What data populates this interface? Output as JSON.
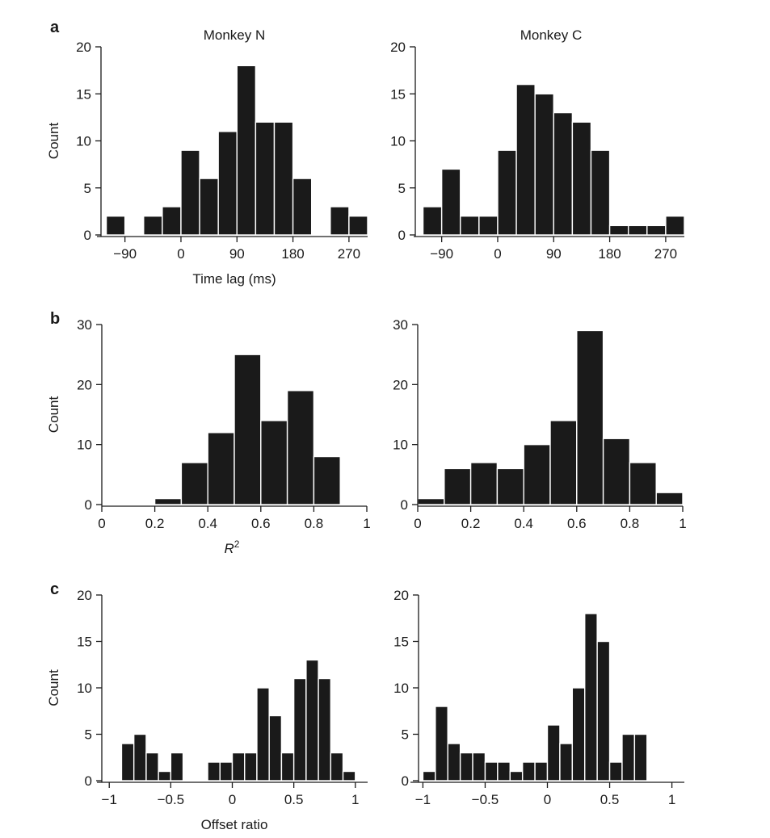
{
  "figure": {
    "column_titles": [
      "Monkey N",
      "Monkey C"
    ],
    "panel_letters": [
      "a",
      "b",
      "c"
    ]
  },
  "chart_data": [
    {
      "id": "a-left",
      "type": "bar",
      "panel": "a",
      "title": "Monkey N",
      "xlabel": "Time lag (ms)",
      "ylabel": "Count",
      "xlim": [
        -135,
        300
      ],
      "ylim": [
        0,
        20
      ],
      "xticks": [
        -90,
        0,
        90,
        180,
        270
      ],
      "xtick_labels": [
        "−90",
        "0",
        "90",
        "180",
        "270"
      ],
      "yticks": [
        0,
        5,
        10,
        15,
        20
      ],
      "bin_width": 30,
      "bin_starts": [
        -120,
        -90,
        -60,
        -30,
        0,
        30,
        60,
        90,
        120,
        150,
        180,
        210,
        240,
        270
      ],
      "values": [
        2,
        0,
        2,
        3,
        9,
        6,
        11,
        18,
        12,
        12,
        6,
        0,
        3,
        2
      ]
    },
    {
      "id": "a-right",
      "type": "bar",
      "panel": "a",
      "title": "Monkey C",
      "xlabel": "",
      "ylabel": "",
      "xlim": [
        -135,
        300
      ],
      "ylim": [
        0,
        20
      ],
      "xticks": [
        -90,
        0,
        90,
        180,
        270
      ],
      "xtick_labels": [
        "−90",
        "0",
        "90",
        "180",
        "270"
      ],
      "yticks": [
        0,
        5,
        10,
        15,
        20
      ],
      "bin_width": 30,
      "bin_starts": [
        -120,
        -90,
        -60,
        -30,
        0,
        30,
        60,
        90,
        120,
        150,
        180,
        210,
        240,
        270
      ],
      "values": [
        3,
        7,
        2,
        2,
        9,
        16,
        15,
        13,
        12,
        9,
        1,
        1,
        1,
        2
      ]
    },
    {
      "id": "b-left",
      "type": "bar",
      "panel": "b",
      "xlabel": "R",
      "xlabel_sup": "2",
      "ylabel": "Count",
      "xlim": [
        0,
        1
      ],
      "ylim": [
        0,
        30
      ],
      "xticks": [
        0,
        0.2,
        0.4,
        0.6,
        0.8,
        1
      ],
      "xtick_labels": [
        "0",
        "0.2",
        "0.4",
        "0.6",
        "0.8",
        "1"
      ],
      "yticks": [
        0,
        10,
        20,
        30
      ],
      "bin_width": 0.1,
      "bin_starts": [
        0,
        0.1,
        0.2,
        0.3,
        0.4,
        0.5,
        0.6,
        0.7,
        0.8,
        0.9
      ],
      "values": [
        0,
        0,
        1,
        7,
        12,
        25,
        14,
        19,
        8,
        0
      ]
    },
    {
      "id": "b-right",
      "type": "bar",
      "panel": "b",
      "xlabel": "",
      "ylabel": "",
      "xlim": [
        0,
        1
      ],
      "ylim": [
        0,
        30
      ],
      "xticks": [
        0,
        0.2,
        0.4,
        0.6,
        0.8,
        1
      ],
      "xtick_labels": [
        "0",
        "0.2",
        "0.4",
        "0.6",
        "0.8",
        "1"
      ],
      "yticks": [
        0,
        10,
        20,
        30
      ],
      "bin_width": 0.1,
      "bin_starts": [
        0,
        0.1,
        0.2,
        0.3,
        0.4,
        0.5,
        0.6,
        0.7,
        0.8,
        0.9
      ],
      "values": [
        1,
        6,
        7,
        6,
        10,
        14,
        29,
        11,
        7,
        2
      ]
    },
    {
      "id": "c-left",
      "type": "bar",
      "panel": "c",
      "xlabel": "Offset ratio",
      "ylabel": "Count",
      "xlim": [
        -1.1,
        1.1
      ],
      "ylim": [
        0,
        20
      ],
      "xticks": [
        -1,
        -0.5,
        0,
        0.5,
        1
      ],
      "xtick_labels": [
        "−1",
        "−0.5",
        "0",
        "0.5",
        "1"
      ],
      "yticks": [
        0,
        5,
        10,
        15,
        20
      ],
      "bin_width": 0.1,
      "bin_starts": [
        -0.9,
        -0.8,
        -0.7,
        -0.6,
        -0.5,
        -0.4,
        -0.3,
        -0.2,
        -0.1,
        0,
        0.1,
        0.2,
        0.3,
        0.4,
        0.5,
        0.6,
        0.7,
        0.8,
        0.9
      ],
      "values": [
        4,
        5,
        3,
        1,
        3,
        0,
        0,
        2,
        2,
        3,
        3,
        10,
        7,
        3,
        11,
        13,
        11,
        3,
        1
      ]
    },
    {
      "id": "c-right",
      "type": "bar",
      "panel": "c",
      "xlabel": "",
      "ylabel": "",
      "xlim": [
        -1.1,
        1.1
      ],
      "ylim": [
        0,
        20
      ],
      "xticks": [
        -1,
        -0.5,
        0,
        0.5,
        1
      ],
      "xtick_labels": [
        "−1",
        "−0.5",
        "0",
        "0.5",
        "1"
      ],
      "yticks": [
        0,
        5,
        10,
        15,
        20
      ],
      "bin_width": 0.1,
      "bin_starts": [
        -1.0,
        -0.9,
        -0.8,
        -0.7,
        -0.6,
        -0.5,
        -0.4,
        -0.3,
        -0.2,
        -0.1,
        0,
        0.1,
        0.2,
        0.3,
        0.4,
        0.5,
        0.6,
        0.7
      ],
      "values": [
        1,
        8,
        4,
        3,
        3,
        2,
        2,
        1,
        2,
        2,
        6,
        4,
        10,
        18,
        15,
        2,
        5,
        5
      ]
    }
  ]
}
